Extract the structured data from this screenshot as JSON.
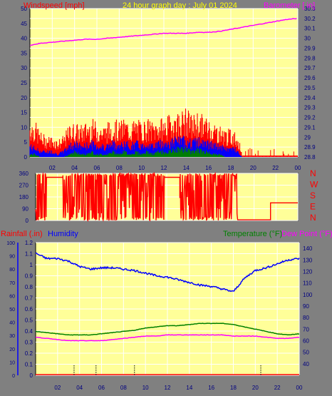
{
  "header": {
    "wind_label": "Windspeed [mph]",
    "title": "24 hour graph day : July 01 2024",
    "baro_label": "Barometer [ in]"
  },
  "colors": {
    "plot_bg": "#ffff99",
    "frame_bg": "#808080",
    "wind": "#ff0000",
    "gust_fill": "#ff0000",
    "wind_blue": "#0000ff",
    "wind_green": "#008000",
    "barometer": "#ff00ff",
    "humidity": "#0000ff",
    "temperature": "#008000",
    "dewpoint": "#ff00ff",
    "rain": "#ff0000",
    "title": "#ffff00",
    "tick": "#000080",
    "grid": "#ffffff"
  },
  "chart_data": [
    {
      "type": "area",
      "name": "wind-baro",
      "x": {
        "ticks": [
          "02",
          "04",
          "06",
          "08",
          "10",
          "12",
          "14",
          "16",
          "18",
          "20",
          "22",
          "00"
        ]
      },
      "y_left": {
        "label": "Windspeed [mph]",
        "range": [
          0,
          50
        ],
        "ticks": [
          "0",
          "5",
          "10",
          "15",
          "20",
          "25",
          "30",
          "35",
          "40",
          "45",
          "50"
        ]
      },
      "y_right": {
        "label": "Barometer [ in]",
        "range": [
          28.8,
          30.3
        ],
        "ticks": [
          "28.8",
          "28.9",
          "29",
          "29.1",
          "29.2",
          "29.3",
          "29.4",
          "29.5",
          "29.6",
          "29.7",
          "29.8",
          "29.9",
          "30",
          "30.1",
          "30.2",
          "30.3"
        ]
      },
      "series": [
        {
          "name": "Barometer",
          "axis": "right",
          "x": [
            0,
            1,
            2,
            3,
            4,
            5,
            6,
            7,
            8,
            9,
            10,
            11,
            12,
            13,
            14,
            15,
            16,
            17,
            18,
            19,
            20,
            21,
            22,
            23,
            24
          ],
          "values": [
            29.93,
            29.95,
            29.96,
            29.97,
            29.98,
            29.99,
            29.99,
            30.0,
            30.01,
            30.02,
            30.03,
            30.04,
            30.05,
            30.05,
            30.05,
            30.06,
            30.06,
            30.07,
            30.09,
            30.11,
            30.13,
            30.15,
            30.17,
            30.19,
            30.2
          ]
        }
      ],
      "wind_envelope": {
        "x": [
          0,
          0.5,
          1,
          1.5,
          2,
          2.5,
          3,
          3.5,
          4,
          4.5,
          5,
          5.5,
          6,
          6.5,
          7,
          7.5,
          8,
          8.5,
          9,
          9.5,
          10,
          10.5,
          11,
          11.5,
          12,
          12.5,
          13,
          13.5,
          14,
          14.5,
          15,
          15.5,
          16,
          16.5,
          17,
          17.5,
          18,
          18.5,
          19
        ],
        "gust": [
          11,
          10,
          7,
          6,
          6,
          5,
          6,
          9,
          10,
          9,
          10,
          11,
          10,
          9,
          10,
          11,
          10,
          11,
          10,
          11,
          10,
          11,
          10,
          11,
          11,
          12,
          13,
          13,
          14,
          12,
          13,
          12,
          11,
          10,
          9,
          8,
          8,
          7,
          2
        ],
        "avg": [
          4,
          3,
          2,
          2,
          2,
          1,
          2,
          4,
          5,
          4,
          4,
          5,
          4,
          4,
          4,
          5,
          4,
          5,
          4,
          5,
          4,
          5,
          4,
          5,
          5,
          5,
          6,
          6,
          6,
          5,
          6,
          5,
          5,
          4,
          4,
          3,
          3,
          3,
          0
        ],
        "low": [
          1,
          1,
          0,
          0,
          0,
          0,
          0,
          1,
          2,
          1,
          1,
          2,
          1,
          1,
          1,
          2,
          1,
          2,
          1,
          2,
          1,
          2,
          1,
          2,
          2,
          2,
          3,
          3,
          3,
          2,
          3,
          2,
          2,
          1,
          1,
          0,
          0,
          0,
          0
        ]
      }
    },
    {
      "type": "line",
      "name": "wind-direction",
      "x": {
        "ticks": [
          "02",
          "04",
          "06",
          "08",
          "10",
          "12",
          "14",
          "16",
          "18",
          "20",
          "22",
          "00"
        ]
      },
      "y_left": {
        "range": [
          0,
          360
        ],
        "ticks": [
          "0",
          "90",
          "180",
          "270",
          "360"
        ]
      },
      "y_right": {
        "ticks": [
          "N",
          "W",
          "S",
          "E",
          "N"
        ]
      },
      "segments": [
        {
          "from": 0,
          "to": 1.0,
          "mode": "noisy"
        },
        {
          "from": 1.0,
          "to": 2.5,
          "mode": "flat",
          "value": 330
        },
        {
          "from": 2.5,
          "to": 11.8,
          "mode": "noisy"
        },
        {
          "from": 11.8,
          "to": 13.2,
          "mode": "flat",
          "value": 330
        },
        {
          "from": 13.2,
          "to": 18.5,
          "mode": "noisy"
        },
        {
          "from": 18.5,
          "to": 21.5,
          "mode": "flat",
          "value": 5
        },
        {
          "from": 21.5,
          "to": 24,
          "mode": "flat",
          "value": 135
        }
      ]
    },
    {
      "type": "line",
      "name": "temp-humidity",
      "x": {
        "ticks": [
          "02",
          "04",
          "06",
          "08",
          "10",
          "12",
          "14",
          "16",
          "18",
          "20",
          "22",
          "00"
        ]
      },
      "y_rain": {
        "label": "Rainfall (.in)",
        "range": [
          0,
          1.2
        ],
        "ticks": [
          "0",
          "0.1",
          "0.2",
          "0.3",
          "0.4",
          "0.5",
          "0.6",
          "0.7",
          "0.8",
          "0.9",
          "1",
          "1.1",
          "1.2"
        ]
      },
      "y_humidity": {
        "label": "Humidity",
        "range": [
          0,
          100
        ],
        "ticks": [
          "0",
          "10",
          "20",
          "30",
          "40",
          "50",
          "60",
          "70",
          "80",
          "90",
          "100"
        ]
      },
      "y_temp": {
        "label": "Temperature (°F)",
        "label2": "Dew Point (°F)",
        "range": [
          30,
          145
        ],
        "ticks": [
          "40",
          "50",
          "60",
          "70",
          "80",
          "90",
          "100",
          "110",
          "120",
          "130",
          "140"
        ]
      },
      "series": [
        {
          "name": "Humidity",
          "axis": "humidity",
          "x": [
            0,
            1,
            2,
            3,
            4,
            5,
            6,
            7,
            8,
            9,
            10,
            11,
            12,
            13,
            14,
            15,
            16,
            17,
            18,
            19,
            20,
            21,
            22,
            23,
            24
          ],
          "values": [
            92,
            88,
            88,
            86,
            82,
            80,
            81,
            81,
            80,
            79,
            77,
            75,
            74,
            72,
            70,
            68,
            67,
            65,
            63,
            73,
            79,
            81,
            84,
            87,
            88
          ]
        },
        {
          "name": "Temperature (°F)",
          "axis": "temp",
          "x": [
            0,
            1,
            2,
            3,
            4,
            5,
            6,
            7,
            8,
            9,
            10,
            11,
            12,
            13,
            14,
            15,
            16,
            17,
            18,
            19,
            20,
            21,
            22,
            23,
            24
          ],
          "values": [
            68,
            67,
            66,
            65,
            65,
            65,
            66,
            67,
            68,
            69,
            71,
            72,
            73,
            73,
            74,
            75,
            75,
            75,
            74,
            72,
            70,
            68,
            66,
            65,
            66
          ]
        },
        {
          "name": "Dew Point (°F)",
          "axis": "temp",
          "x": [
            0,
            1,
            2,
            3,
            4,
            5,
            6,
            7,
            8,
            9,
            10,
            11,
            12,
            13,
            14,
            15,
            16,
            17,
            18,
            19,
            20,
            21,
            22,
            23,
            24
          ],
          "values": [
            63,
            62,
            61,
            60,
            60,
            60,
            60,
            61,
            62,
            63,
            64,
            64,
            65,
            65,
            65,
            65,
            65,
            65,
            64,
            64,
            64,
            63,
            62,
            62,
            63
          ]
        }
      ],
      "rain_markers_x": [
        3.5,
        5.5,
        9.0,
        20.5
      ]
    }
  ]
}
